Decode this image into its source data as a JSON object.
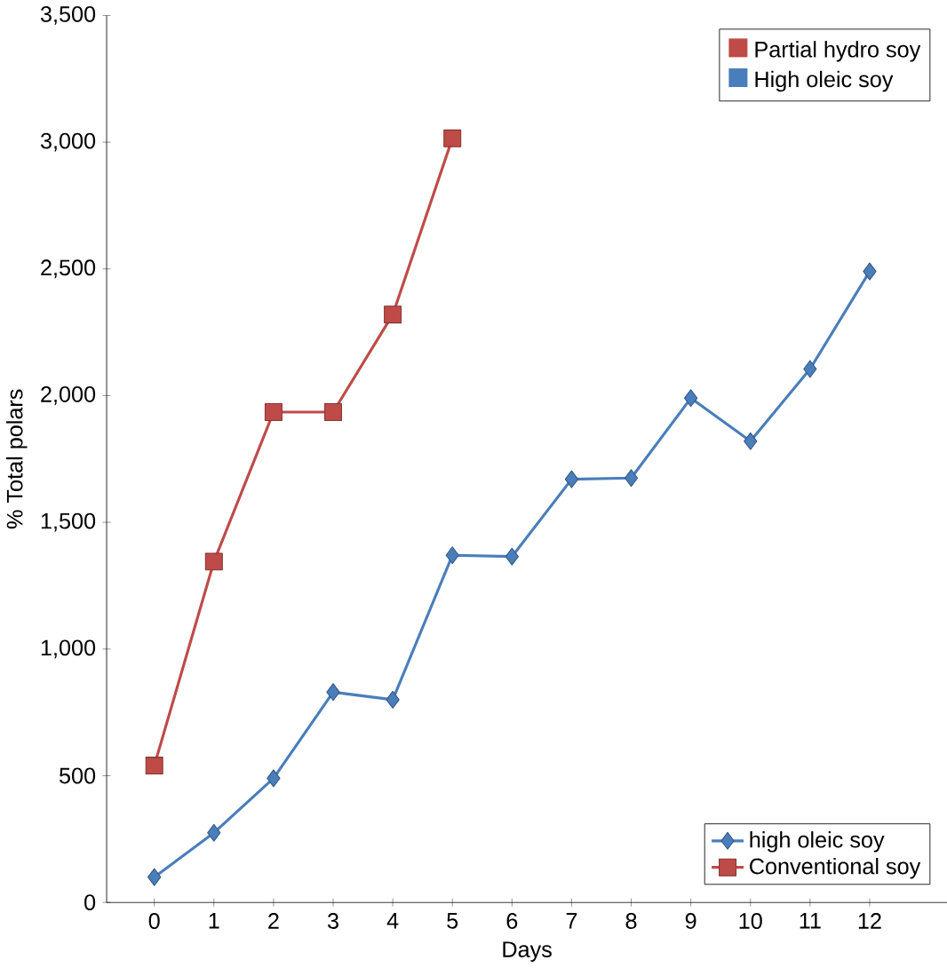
{
  "chart_data": {
    "type": "line",
    "xlabel": "Days",
    "ylabel": "% Total polars",
    "x": [
      0,
      1,
      2,
      3,
      4,
      5,
      6,
      7,
      8,
      9,
      10,
      11,
      12
    ],
    "series": [
      {
        "name": "high oleic soy",
        "color": "#4a7ebb",
        "marker": "diamond",
        "values": [
          100,
          275,
          490,
          830,
          800,
          1370,
          1365,
          1670,
          1675,
          1990,
          1820,
          2105,
          2490
        ]
      },
      {
        "name": "Conventional soy",
        "color": "#be4b48",
        "marker": "square",
        "x": [
          0,
          1,
          2,
          3,
          4,
          5
        ],
        "values": [
          540,
          1345,
          1935,
          1935,
          2320,
          3015
        ]
      }
    ],
    "xlim": [
      -0.8,
      13.3
    ],
    "xticks": [
      0,
      1,
      2,
      3,
      4,
      5,
      6,
      7,
      8,
      9,
      10,
      11,
      12
    ],
    "ylim": [
      0,
      3500
    ],
    "yticks": [
      0,
      {
        "value": 500,
        "label": "500"
      },
      {
        "value": 1000,
        "label": "1,000"
      },
      {
        "value": 1500,
        "label": "1,500"
      },
      {
        "value": 2000,
        "label": "2,000"
      },
      {
        "value": 2500,
        "label": "2,500"
      },
      {
        "value": 3000,
        "label": "3,000"
      },
      {
        "value": 3500,
        "label": "3,500"
      }
    ],
    "legend": "bottom right",
    "grid": false,
    "annotations": [
      "Partial hydro soy",
      "High oleic soy"
    ]
  }
}
